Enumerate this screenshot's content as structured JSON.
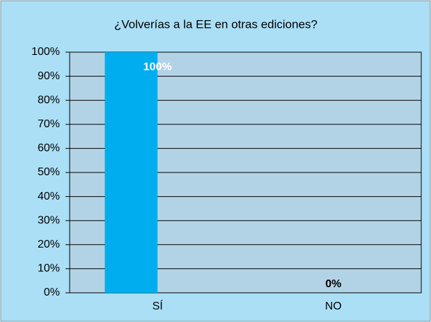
{
  "chart_data": {
    "type": "bar",
    "title": "¿Volverías a la EE en otras ediciones?",
    "categories": [
      "SÍ",
      "NO"
    ],
    "values": [
      100,
      0
    ],
    "value_labels": [
      "100%",
      "0%"
    ],
    "color": "#00aeef",
    "ylim": [
      0,
      100
    ],
    "yticks": [
      {
        "value": 0,
        "label": "0%"
      },
      {
        "value": 10,
        "label": "10%"
      },
      {
        "value": 20,
        "label": "20%"
      },
      {
        "value": 30,
        "label": "30%"
      },
      {
        "value": 40,
        "label": "40%"
      },
      {
        "value": 50,
        "label": "50%"
      },
      {
        "value": 60,
        "label": "60%"
      },
      {
        "value": 70,
        "label": "70%"
      },
      {
        "value": 80,
        "label": "80%"
      },
      {
        "value": 90,
        "label": "90%"
      },
      {
        "value": 100,
        "label": "100%"
      }
    ],
    "grid": true
  }
}
